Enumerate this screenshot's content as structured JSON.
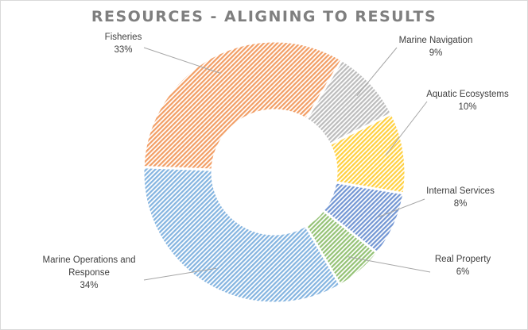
{
  "chart_data": {
    "type": "pie",
    "title": "RESOURCES - ALIGNING TO RESULTS",
    "donut": true,
    "start_angle_deg": 31,
    "slices": [
      {
        "label": "Marine Navigation",
        "value": 9,
        "display": "9%",
        "color": "#a5a5a5"
      },
      {
        "label": "Aquatic Ecosystems",
        "value": 10,
        "display": "10%",
        "color": "#ffc000"
      },
      {
        "label": "Internal Services",
        "value": 8,
        "display": "8%",
        "color": "#4472c4"
      },
      {
        "label": "Real Property",
        "value": 6,
        "display": "6%",
        "color": "#70ad47"
      },
      {
        "label": "Marine Operations and Response",
        "value": 34,
        "display": "34%",
        "color": "#5b9bd5"
      },
      {
        "label": "Fisheries",
        "value": 33,
        "display": "33%",
        "color": "#ed7d31"
      }
    ]
  }
}
